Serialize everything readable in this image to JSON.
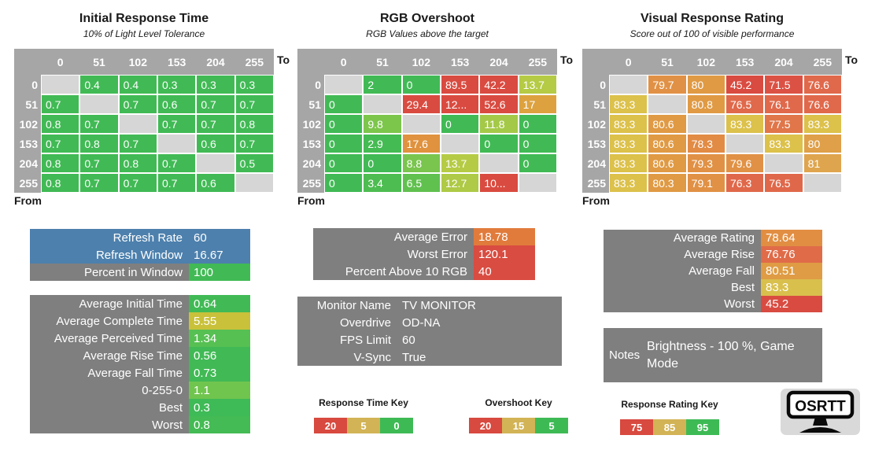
{
  "tables": [
    {
      "title": "Initial Response Time",
      "subtitle": "10% of Light Level Tolerance",
      "to_label": "To",
      "from_label": "From",
      "headers": [
        "0",
        "51",
        "102",
        "153",
        "204",
        "255"
      ],
      "row_labels": [
        "0",
        "51",
        "102",
        "153",
        "204",
        "255"
      ],
      "rows": [
        [
          null,
          {
            "v": "0.4",
            "c": "#41ba55"
          },
          {
            "v": "0.4",
            "c": "#41ba55"
          },
          {
            "v": "0.3",
            "c": "#41ba55"
          },
          {
            "v": "0.3",
            "c": "#41ba55"
          },
          {
            "v": "0.3",
            "c": "#41ba55"
          }
        ],
        [
          {
            "v": "0.7",
            "c": "#41ba55"
          },
          null,
          {
            "v": "0.7",
            "c": "#41ba55"
          },
          {
            "v": "0.6",
            "c": "#41ba55"
          },
          {
            "v": "0.7",
            "c": "#41ba55"
          },
          {
            "v": "0.7",
            "c": "#41ba55"
          }
        ],
        [
          {
            "v": "0.8",
            "c": "#41ba55"
          },
          {
            "v": "0.7",
            "c": "#41ba55"
          },
          null,
          {
            "v": "0.7",
            "c": "#41ba55"
          },
          {
            "v": "0.7",
            "c": "#41ba55"
          },
          {
            "v": "0.8",
            "c": "#41ba55"
          }
        ],
        [
          {
            "v": "0.7",
            "c": "#41ba55"
          },
          {
            "v": "0.8",
            "c": "#41ba55"
          },
          {
            "v": "0.7",
            "c": "#41ba55"
          },
          null,
          {
            "v": "0.6",
            "c": "#41ba55"
          },
          {
            "v": "0.7",
            "c": "#41ba55"
          }
        ],
        [
          {
            "v": "0.8",
            "c": "#41ba55"
          },
          {
            "v": "0.7",
            "c": "#41ba55"
          },
          {
            "v": "0.8",
            "c": "#41ba55"
          },
          {
            "v": "0.7",
            "c": "#41ba55"
          },
          null,
          {
            "v": "0.5",
            "c": "#41ba55"
          }
        ],
        [
          {
            "v": "0.8",
            "c": "#41ba55"
          },
          {
            "v": "0.7",
            "c": "#41ba55"
          },
          {
            "v": "0.7",
            "c": "#41ba55"
          },
          {
            "v": "0.7",
            "c": "#41ba55"
          },
          {
            "v": "0.6",
            "c": "#41ba55"
          },
          null
        ]
      ]
    },
    {
      "title": "RGB Overshoot",
      "subtitle": "RGB Values above the target",
      "to_label": "To",
      "from_label": "From",
      "headers": [
        "0",
        "51",
        "102",
        "153",
        "204",
        "255"
      ],
      "row_labels": [
        "0",
        "51",
        "102",
        "153",
        "204",
        "255"
      ],
      "rows": [
        [
          null,
          {
            "v": "2",
            "c": "#41ba55"
          },
          {
            "v": "0",
            "c": "#41ba55"
          },
          {
            "v": "89.5",
            "c": "#d94b40"
          },
          {
            "v": "42.2",
            "c": "#d94b40"
          },
          {
            "v": "13.7",
            "c": "#b5cb45"
          }
        ],
        [
          {
            "v": "0",
            "c": "#41ba55"
          },
          null,
          {
            "v": "29.4",
            "c": "#d94b40"
          },
          {
            "v": "12...",
            "c": "#d94b40"
          },
          {
            "v": "52.6",
            "c": "#d94b40"
          },
          {
            "v": "17",
            "c": "#dda23f"
          }
        ],
        [
          {
            "v": "0",
            "c": "#41ba55"
          },
          {
            "v": "9.8",
            "c": "#7cc64c"
          },
          null,
          {
            "v": "0",
            "c": "#41ba55"
          },
          {
            "v": "11.8",
            "c": "#a4c948"
          },
          {
            "v": "0",
            "c": "#41ba55"
          }
        ],
        [
          {
            "v": "0",
            "c": "#41ba55"
          },
          {
            "v": "2.9",
            "c": "#45bb53"
          },
          {
            "v": "17.6",
            "c": "#e0923e"
          },
          null,
          {
            "v": "0",
            "c": "#41ba55"
          },
          {
            "v": "0",
            "c": "#41ba55"
          }
        ],
        [
          {
            "v": "0",
            "c": "#41ba55"
          },
          {
            "v": "0",
            "c": "#41ba55"
          },
          {
            "v": "8.8",
            "c": "#79c54d"
          },
          {
            "v": "13.7",
            "c": "#b5cb45"
          },
          null,
          {
            "v": "0",
            "c": "#41ba55"
          }
        ],
        [
          {
            "v": "0",
            "c": "#41ba55"
          },
          {
            "v": "3.4",
            "c": "#4dbd51"
          },
          {
            "v": "6.5",
            "c": "#61c14f"
          },
          {
            "v": "12.7",
            "c": "#aeca46"
          },
          {
            "v": "10...",
            "c": "#d94b40"
          },
          null
        ]
      ]
    },
    {
      "title": "Visual Response Rating",
      "subtitle": "Score out of 100 of visible performance",
      "to_label": "To",
      "from_label": "From",
      "headers": [
        "0",
        "51",
        "102",
        "153",
        "204",
        "255"
      ],
      "row_labels": [
        "0",
        "51",
        "102",
        "153",
        "204",
        "255"
      ],
      "rows": [
        [
          null,
          {
            "v": "79.7",
            "c": "#e19145"
          },
          {
            "v": "80",
            "c": "#e09a44"
          },
          {
            "v": "45.2",
            "c": "#d94b40"
          },
          {
            "v": "71.5",
            "c": "#db5244"
          },
          {
            "v": "76.6",
            "c": "#e0694b"
          }
        ],
        [
          {
            "v": "83.3",
            "c": "#dcc14b"
          },
          null,
          {
            "v": "80.8",
            "c": "#e09a44"
          },
          {
            "v": "76.5",
            "c": "#e0694b"
          },
          {
            "v": "76.1",
            "c": "#e0694b"
          },
          {
            "v": "76.6",
            "c": "#e0694b"
          }
        ],
        [
          {
            "v": "83.3",
            "c": "#dcc14b"
          },
          {
            "v": "80.6",
            "c": "#e09a44"
          },
          null,
          {
            "v": "83.3",
            "c": "#dcc14b"
          },
          {
            "v": "77.5",
            "c": "#e0764a"
          },
          {
            "v": "83.3",
            "c": "#dcc14b"
          }
        ],
        [
          {
            "v": "83.3",
            "c": "#dcc14b"
          },
          {
            "v": "80.6",
            "c": "#e09a44"
          },
          {
            "v": "78.3",
            "c": "#e28b45"
          },
          null,
          {
            "v": "83.3",
            "c": "#dcc14b"
          },
          {
            "v": "80",
            "c": "#dfa049"
          }
        ],
        [
          {
            "v": "83.3",
            "c": "#dcc14b"
          },
          {
            "v": "80.6",
            "c": "#e09a44"
          },
          {
            "v": "79.3",
            "c": "#e19145"
          },
          {
            "v": "79.6",
            "c": "#e19145"
          },
          null,
          {
            "v": "81",
            "c": "#dfa54e"
          }
        ],
        [
          {
            "v": "83.3",
            "c": "#dcc14b"
          },
          {
            "v": "80.3",
            "c": "#e09a44"
          },
          {
            "v": "79.1",
            "c": "#e19145"
          },
          {
            "v": "76.3",
            "c": "#e0684a"
          },
          {
            "v": "76.5",
            "c": "#e0684a"
          },
          null
        ]
      ]
    }
  ],
  "panels": {
    "refresh": [
      {
        "label": "Refresh Rate",
        "value": "60",
        "lbg": "#4d80ad",
        "vbg": "#4d80ad"
      },
      {
        "label": "Refresh Window",
        "value": "16.67",
        "lbg": "#4d80ad",
        "vbg": "#4d80ad"
      },
      {
        "label": "Percent in Window",
        "value": "100",
        "vbg": "#41ba55"
      }
    ],
    "response_stats": [
      {
        "label": "Average Initial Time",
        "value": "0.64",
        "vbg": "#41ba55"
      },
      {
        "label": "Average Complete Time",
        "value": "5.55",
        "vbg": "#c9c13a"
      },
      {
        "label": "Average Perceived Time",
        "value": "1.34",
        "vbg": "#56c052"
      },
      {
        "label": "Average Rise Time",
        "value": "0.56",
        "vbg": "#41ba55"
      },
      {
        "label": "Average Fall Time",
        "value": "0.73",
        "vbg": "#41ba55"
      },
      {
        "label": "0-255-0",
        "value": "1.1",
        "vbg": "#70c54e"
      },
      {
        "label": "Best",
        "value": "0.3",
        "vbg": "#3eba56"
      },
      {
        "label": "Worst",
        "value": "0.8",
        "vbg": "#44bb54"
      }
    ],
    "error_stats": [
      {
        "label": "Average Error",
        "value": "18.78",
        "vbg": "#e17b3c"
      },
      {
        "label": "Worst Error",
        "value": "120.1",
        "vbg": "#d94c41"
      },
      {
        "label": "Percent Above 10 RGB",
        "value": "40",
        "vbg": "#d94c41"
      }
    ],
    "monitor_info": [
      {
        "label": "Monitor Name",
        "value": "TV MONITOR"
      },
      {
        "label": "Overdrive",
        "value": "OD-NA"
      },
      {
        "label": "FPS Limit",
        "value": "60"
      },
      {
        "label": "V-Sync",
        "value": "True"
      }
    ],
    "rating_stats": [
      {
        "label": "Average Rating",
        "value": "78.64",
        "vbg": "#e18e43"
      },
      {
        "label": "Average Rise",
        "value": "76.76",
        "vbg": "#e06b49"
      },
      {
        "label": "Average Fall",
        "value": "80.51",
        "vbg": "#df9c44"
      },
      {
        "label": "Best",
        "value": "83.3",
        "vbg": "#d9c04d"
      },
      {
        "label": "Worst",
        "value": "45.2",
        "vbg": "#d94b41"
      }
    ],
    "notes": {
      "label": "Notes",
      "value": "Brightness - 100 %, Game Mode"
    }
  },
  "keys": [
    {
      "title": "Response Time Key",
      "stops": [
        {
          "value": "20",
          "color": "#d8493f"
        },
        {
          "value": "5",
          "color": "#d2b355"
        },
        {
          "value": "0",
          "color": "#3eba55"
        }
      ]
    },
    {
      "title": "Overshoot Key",
      "stops": [
        {
          "value": "20",
          "color": "#d8493f"
        },
        {
          "value": "15",
          "color": "#d2b355"
        },
        {
          "value": "5",
          "color": "#3eba55"
        }
      ]
    },
    {
      "title": "Response Rating Key",
      "stops": [
        {
          "value": "75",
          "color": "#d8493f"
        },
        {
          "value": "85",
          "color": "#d2b355"
        },
        {
          "value": "95",
          "color": "#3eba55"
        }
      ]
    }
  ],
  "logo": {
    "text": "OSRTT"
  },
  "colors": {
    "header_gray": "#a6a6a6",
    "diagonal_gray": "#d6d6d6",
    "panel_gray": "#7f7f7f",
    "refresh_blue": "#4d80ad",
    "green": "#41ba55",
    "red": "#d94b40"
  }
}
